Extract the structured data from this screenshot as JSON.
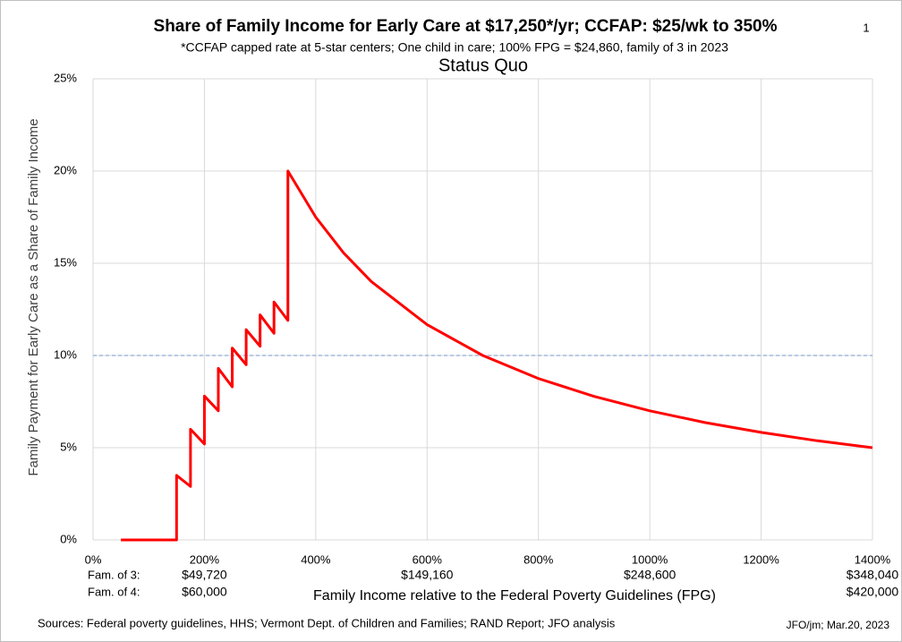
{
  "chart_data": {
    "type": "line",
    "page_number": "1",
    "title": "Share of Family Income for Early Care at $17,250*/yr; CCFAP: $25/wk to 350%",
    "subtitle": "*CCFAP capped rate at 5-star centers; One child in care; 100% FPG = $24,860, family of 3 in 2023",
    "chart_title": "Status Quo",
    "x_label": "Family Income relative to the Federal Poverty Guidelines (FPG)",
    "y_label": "Family Payment for Early Care as a Share of Family Income",
    "source": "Sources: Federal poverty guidelines, HHS; Vermont Dept. of Children and Families; RAND Report; JFO analysis",
    "credit": "JFO/jm; Mar.20, 2023",
    "x": [
      50,
      150,
      150,
      175,
      175,
      200,
      200,
      225,
      225,
      250,
      250,
      275,
      275,
      300,
      300,
      325,
      325,
      350,
      350,
      400,
      450,
      500,
      600,
      700,
      800,
      900,
      1000,
      1100,
      1200,
      1300,
      1400
    ],
    "series": [
      {
        "name": "Family payment share",
        "color": "#ff0000",
        "values": [
          0,
          0,
          3.5,
          2.9,
          6.0,
          5.2,
          7.8,
          7.0,
          9.3,
          8.3,
          10.4,
          9.5,
          11.4,
          10.5,
          12.2,
          11.2,
          12.9,
          11.9,
          20,
          17.5,
          15.56,
          14,
          11.67,
          10,
          8.75,
          7.78,
          7,
          6.36,
          5.83,
          5.38,
          5
        ]
      }
    ],
    "xlim": [
      0,
      1400
    ],
    "xticks": [
      {
        "value": 0,
        "label": "0%"
      },
      {
        "value": 200,
        "label": "200%"
      },
      {
        "value": 400,
        "label": "400%"
      },
      {
        "value": 600,
        "label": "600%"
      },
      {
        "value": 800,
        "label": "800%"
      },
      {
        "value": 1000,
        "label": "1000%"
      },
      {
        "value": 1200,
        "label": "1200%"
      },
      {
        "value": 1400,
        "label": "1400%"
      }
    ],
    "ylim": [
      0,
      25
    ],
    "yticks": [
      {
        "value": 0,
        "label": "0%"
      },
      {
        "value": 5,
        "label": "5%"
      },
      {
        "value": 10,
        "label": "10%"
      },
      {
        "value": 15,
        "label": "15%"
      },
      {
        "value": 20,
        "label": "20%"
      },
      {
        "value": 25,
        "label": "25%"
      }
    ],
    "grid": true,
    "reference_line": {
      "value": 10,
      "color": "#8eaadb"
    },
    "income_rows": [
      {
        "label": "Fam. of 3:",
        "ticks": [
          {
            "value": 200,
            "label": "$49,720"
          },
          {
            "value": 600,
            "label": "$149,160"
          },
          {
            "value": 1000,
            "label": "$248,600"
          },
          {
            "value": 1400,
            "label": "$348,040"
          }
        ]
      },
      {
        "label": "Fam. of 4:",
        "ticks": [
          {
            "value": 200,
            "label": "$60,000"
          },
          {
            "value": 1400,
            "label": "$420,000"
          }
        ]
      }
    ]
  }
}
